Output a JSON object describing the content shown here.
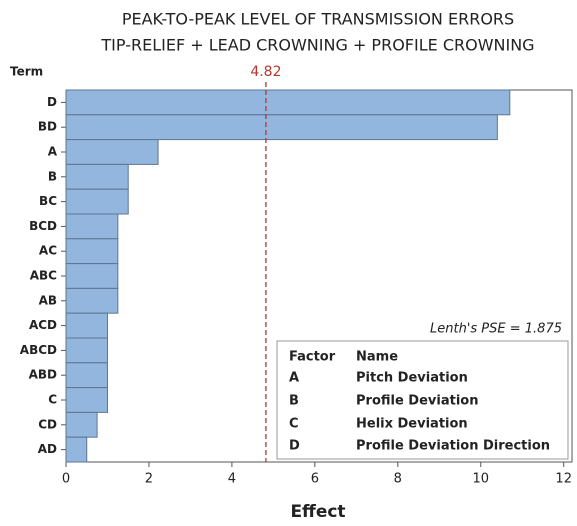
{
  "chart_data": {
    "type": "bar",
    "orientation": "horizontal",
    "title": "PEAK-TO-PEAK LEVEL OF TRANSMISSION ERRORS",
    "subtitle": "TIP-RELIEF + LEAD CROWNING + PROFILE CROWNING",
    "y_label": "Term",
    "x_label": "Effect",
    "categories": [
      "D",
      "BD",
      "A",
      "B",
      "BC",
      "BCD",
      "AC",
      "ABC",
      "AB",
      "ACD",
      "ABCD",
      "ABD",
      "C",
      "CD",
      "AD"
    ],
    "values": [
      10.7,
      10.4,
      2.22,
      1.5,
      1.5,
      1.25,
      1.25,
      1.25,
      1.25,
      1.0,
      1.0,
      1.0,
      1.0,
      0.75,
      0.5
    ],
    "color": "#92b6dd",
    "xlim": [
      0,
      12.2
    ],
    "xticks": [
      0,
      2,
      4,
      6,
      8,
      10,
      12
    ],
    "reference_line": {
      "value": 4.82,
      "color": "#b5372d"
    },
    "annotation": "Lenth's PSE = 1.875",
    "legend": {
      "header": [
        "Factor",
        "Name"
      ],
      "rows": [
        [
          "A",
          "Pitch Deviation"
        ],
        [
          "B",
          "Profile Deviation"
        ],
        [
          "C",
          "Helix Deviation"
        ],
        [
          "D",
          "Profile Deviation Direction"
        ]
      ]
    }
  }
}
